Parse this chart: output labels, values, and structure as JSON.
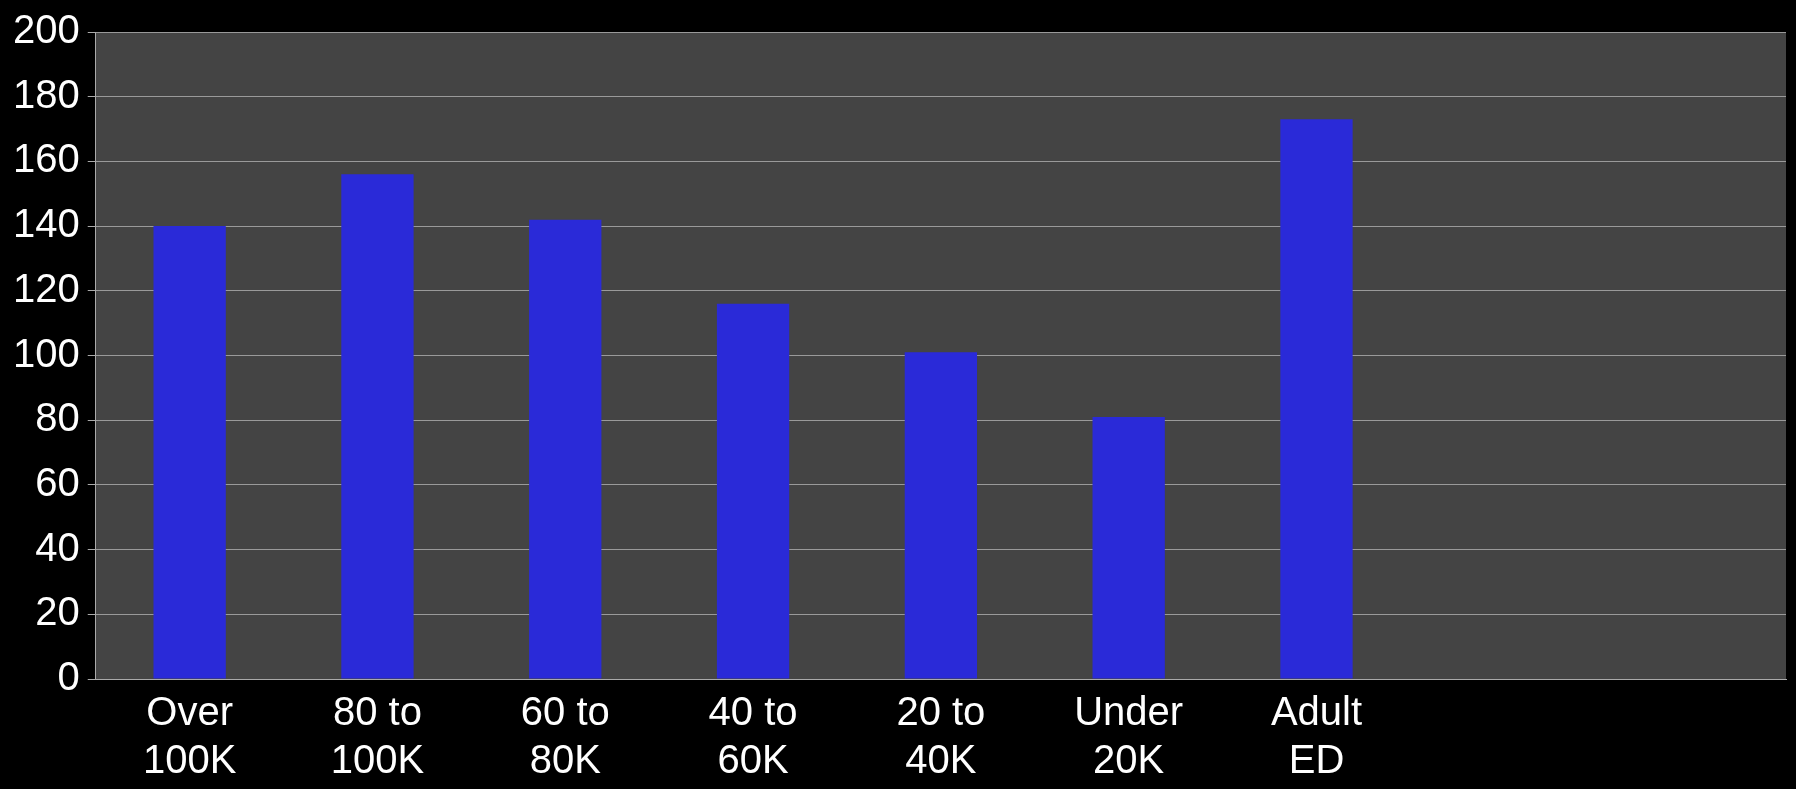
{
  "chart_data": {
    "type": "bar",
    "categories": [
      "Over 100K",
      "80 to 100K",
      "60 to 80K",
      "40 to 60K",
      "20 to 40K",
      "Under 20K",
      "Adult ED",
      null,
      null
    ],
    "values": [
      140,
      156,
      142,
      116,
      101,
      81,
      173,
      null,
      null
    ],
    "color": "#2a2ad8",
    "ylim": [
      0,
      200
    ],
    "yticks": [
      0,
      20,
      40,
      60,
      80,
      100,
      120,
      140,
      160,
      180,
      200
    ],
    "grid": "y",
    "legend": false
  }
}
